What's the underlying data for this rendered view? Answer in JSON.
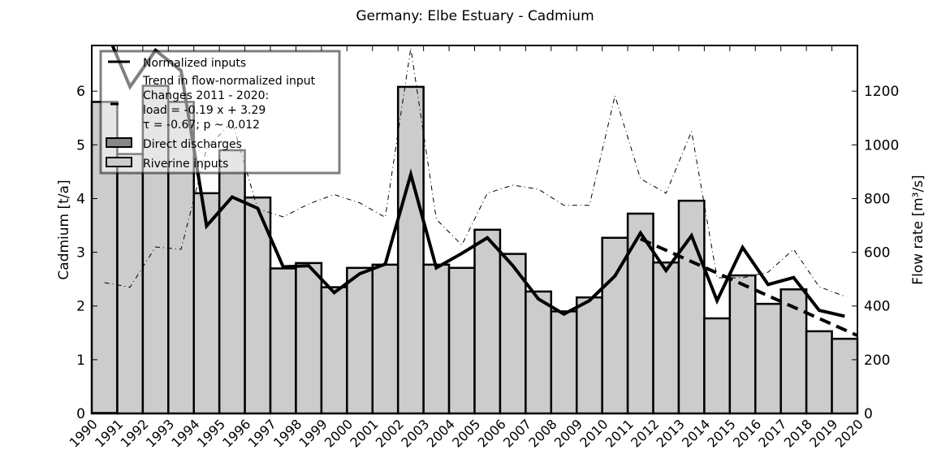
{
  "chart_data": {
    "type": "bar",
    "title": "Germany: Elbe Estuary - Cadmium",
    "ylabel": "Cadmium [t/a]",
    "y2label": "Flow rate [m³/s]",
    "ylim": [
      0,
      6.85
    ],
    "y2lim": [
      0,
      1370
    ],
    "xlim": [
      1990,
      2020
    ],
    "yticks": [
      "0",
      "1",
      "2",
      "3",
      "4",
      "5",
      "6"
    ],
    "y2ticks": [
      "0",
      "200",
      "400",
      "600",
      "800",
      "1000",
      "1200"
    ],
    "xticks": [
      "1990",
      "1991",
      "1992",
      "1993",
      "1994",
      "1995",
      "1996",
      "1997",
      "1998",
      "1999",
      "2000",
      "2001",
      "2002",
      "2003",
      "2004",
      "2005",
      "2006",
      "2007",
      "2008",
      "2009",
      "2010",
      "2011",
      "2012",
      "2013",
      "2014",
      "2015",
      "2016",
      "2017",
      "2018",
      "2019",
      "2020"
    ],
    "years": [
      1990,
      1991,
      1992,
      1993,
      1994,
      1995,
      1996,
      1997,
      1998,
      1999,
      2000,
      2001,
      2002,
      2003,
      2004,
      2005,
      2006,
      2007,
      2008,
      2009,
      2010,
      2011,
      2012,
      2013,
      2014,
      2015,
      2016,
      2017,
      2018,
      2019
    ],
    "series": [
      {
        "name": "Riverine inputs",
        "kind": "bar",
        "color": "#cccccc",
        "values": [
          5.8,
          4.83,
          6.1,
          5.8,
          4.1,
          4.9,
          4.02,
          2.7,
          2.8,
          2.35,
          2.71,
          2.77,
          6.08,
          2.77,
          2.71,
          3.42,
          2.97,
          2.27,
          1.9,
          2.16,
          3.27,
          3.72,
          2.81,
          3.96,
          1.77,
          2.57,
          2.04,
          2.31,
          1.53,
          1.39
        ]
      },
      {
        "name": "Direct discharges",
        "kind": "bar",
        "color": "#888888",
        "values": [
          0.02,
          0,
          0,
          0,
          0,
          0,
          0,
          0,
          0,
          0,
          0,
          0,
          0,
          0,
          0,
          0,
          0,
          0,
          0,
          0,
          0,
          0,
          0,
          0,
          0,
          0,
          0,
          0,
          0,
          0
        ]
      },
      {
        "name": "Normalized inputs",
        "kind": "line",
        "color": "#000000",
        "values": [
          7.2,
          6.08,
          6.76,
          6.38,
          3.49,
          4.03,
          3.82,
          2.73,
          2.75,
          2.25,
          2.6,
          2.78,
          4.45,
          2.71,
          2.98,
          3.27,
          2.75,
          2.13,
          1.85,
          2.1,
          2.56,
          3.36,
          2.66,
          3.31,
          2.1,
          3.09,
          2.4,
          2.53,
          1.92,
          1.81
        ]
      },
      {
        "kind": "flow",
        "axis": "right",
        "color": "#000000",
        "values": [
          487,
          470,
          620,
          611,
          986,
          1086,
          762,
          732,
          780,
          815,
          784,
          730,
          1360,
          723,
          627,
          820,
          850,
          835,
          775,
          775,
          1183,
          874,
          820,
          1050,
          505,
          505,
          526,
          611,
          472,
          436
        ]
      }
    ],
    "trend": {
      "name": "Trend in flow-normalized input",
      "points": [
        [
          2011.5,
          3.25
        ],
        [
          2020,
          1.45
        ]
      ]
    },
    "legend": {
      "position": "top-left",
      "items": [
        "Normalized inputs",
        "Trend in flow-normalized input",
        "Changes 2011 - 2020:",
        "load = -0.19 x +  3.29",
        "τ = -0.67; p ~ 0.012",
        "Direct discharges",
        "Riverine inputs"
      ]
    }
  }
}
